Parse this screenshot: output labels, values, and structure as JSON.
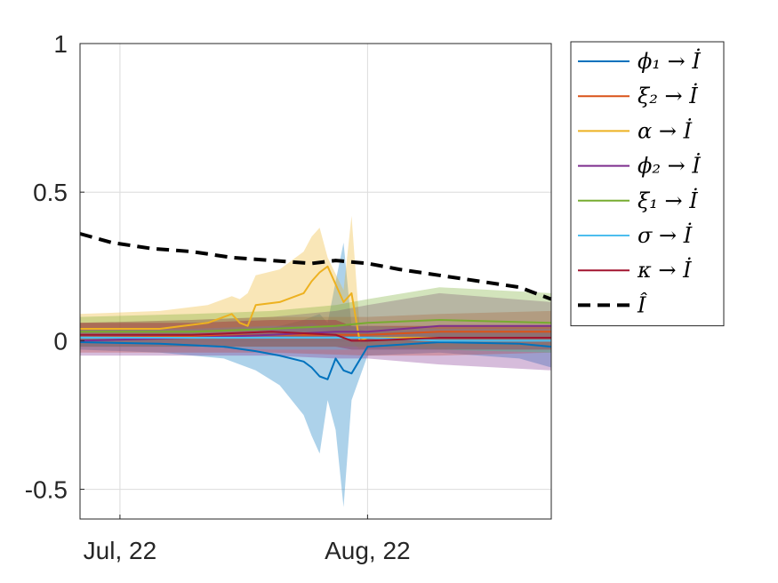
{
  "chart_data": {
    "type": "line",
    "title": "",
    "xlabel": "",
    "ylabel": "",
    "x_ticks": [
      {
        "label": "Jul, 22",
        "date": "2022-07-01"
      },
      {
        "label": "Aug, 22",
        "date": "2022-08-01"
      }
    ],
    "xlim": [
      "2022-06-26",
      "2022-08-24"
    ],
    "ylim": [
      -0.6,
      1
    ],
    "y_ticks": [
      {
        "value": 1,
        "label": "1"
      },
      {
        "value": 0.5,
        "label": "0.5"
      },
      {
        "value": 0,
        "label": "0"
      },
      {
        "value": -0.5,
        "label": "-0.5"
      }
    ],
    "grid": true,
    "legend_position": "outside top-right",
    "series": [
      {
        "name": "ϕ₁ → İ",
        "color": "#0072BD",
        "band_color": "#0072BD",
        "style": "solid",
        "x": [
          "2022-06-26",
          "2022-07-06",
          "2022-07-14",
          "2022-07-18",
          "2022-07-21",
          "2022-07-24",
          "2022-07-25",
          "2022-07-26",
          "2022-07-27",
          "2022-07-28",
          "2022-07-29",
          "2022-07-30",
          "2022-08-01",
          "2022-08-10",
          "2022-08-20",
          "2022-08-24"
        ],
        "y": [
          -0.005,
          -0.01,
          -0.02,
          -0.035,
          -0.05,
          -0.07,
          -0.09,
          -0.12,
          -0.13,
          -0.06,
          -0.1,
          -0.11,
          -0.02,
          -0.005,
          -0.01,
          -0.02
        ],
        "lower": [
          -0.03,
          -0.04,
          -0.06,
          -0.1,
          -0.15,
          -0.25,
          -0.32,
          -0.38,
          -0.2,
          -0.3,
          -0.56,
          -0.2,
          -0.05,
          -0.04,
          -0.06,
          -0.09
        ],
        "upper": [
          0.02,
          0.02,
          0.02,
          0.03,
          0.05,
          0.07,
          0.08,
          0.09,
          0.06,
          0.2,
          0.33,
          0.05,
          0.03,
          0.03,
          0.03,
          0.03
        ]
      },
      {
        "name": "ξ₂ → İ",
        "color": "#D95319",
        "band_color": "#D95319",
        "style": "solid",
        "x": [
          "2022-06-26",
          "2022-07-10",
          "2022-07-20",
          "2022-08-01",
          "2022-08-10",
          "2022-08-24"
        ],
        "y": [
          0.01,
          0.015,
          0.02,
          0.02,
          0.03,
          0.03
        ],
        "lower": [
          -0.04,
          -0.04,
          -0.04,
          -0.05,
          -0.05,
          -0.04
        ],
        "upper": [
          0.06,
          0.07,
          0.08,
          0.08,
          0.09,
          0.1
        ]
      },
      {
        "name": "α → İ",
        "color": "#EDB120",
        "band_color": "#EDB120",
        "style": "solid",
        "x": [
          "2022-06-26",
          "2022-07-06",
          "2022-07-12",
          "2022-07-15",
          "2022-07-16",
          "2022-07-17",
          "2022-07-18",
          "2022-07-21",
          "2022-07-24",
          "2022-07-25",
          "2022-07-26",
          "2022-07-27",
          "2022-07-29",
          "2022-07-30",
          "2022-07-31",
          "2022-08-01",
          "2022-08-10",
          "2022-08-24"
        ],
        "y": [
          0.04,
          0.04,
          0.06,
          0.09,
          0.06,
          0.05,
          0.12,
          0.13,
          0.16,
          0.2,
          0.23,
          0.25,
          0.13,
          0.16,
          0.0,
          0.01,
          0.01,
          0.01
        ],
        "lower": [
          0.0,
          0.0,
          0.01,
          0.02,
          0.02,
          0.02,
          0.03,
          0.04,
          0.05,
          0.06,
          0.05,
          0.03,
          0.02,
          0.0,
          -0.03,
          -0.02,
          -0.02,
          -0.02
        ],
        "upper": [
          0.09,
          0.1,
          0.12,
          0.15,
          0.14,
          0.16,
          0.22,
          0.24,
          0.3,
          0.35,
          0.38,
          0.28,
          0.17,
          0.42,
          0.05,
          0.05,
          0.05,
          0.05
        ]
      },
      {
        "name": "ϕ₂ → İ",
        "color": "#7E2F8E",
        "band_color": "#7E2F8E",
        "style": "solid",
        "x": [
          "2022-06-26",
          "2022-07-10",
          "2022-07-20",
          "2022-07-28",
          "2022-08-01",
          "2022-08-10",
          "2022-08-24"
        ],
        "y": [
          0.0,
          0.01,
          0.02,
          0.03,
          0.03,
          0.05,
          0.05
        ],
        "lower": [
          -0.05,
          -0.05,
          -0.05,
          -0.06,
          -0.06,
          -0.08,
          -0.1
        ],
        "upper": [
          0.06,
          0.07,
          0.08,
          0.1,
          0.12,
          0.16,
          0.13
        ]
      },
      {
        "name": "ξ₁ → İ",
        "color": "#77AC30",
        "band_color": "#77AC30",
        "style": "solid",
        "x": [
          "2022-06-26",
          "2022-07-10",
          "2022-07-20",
          "2022-07-28",
          "2022-08-01",
          "2022-08-10",
          "2022-08-24"
        ],
        "y": [
          0.03,
          0.03,
          0.04,
          0.05,
          0.06,
          0.07,
          0.06
        ],
        "lower": [
          -0.02,
          -0.02,
          -0.02,
          -0.02,
          -0.02,
          -0.03,
          -0.04
        ],
        "upper": [
          0.08,
          0.09,
          0.1,
          0.12,
          0.14,
          0.18,
          0.16
        ]
      },
      {
        "name": "σ → İ",
        "color": "#4DBEEE",
        "band_color": "#4DBEEE",
        "style": "solid",
        "x": [
          "2022-06-26",
          "2022-07-10",
          "2022-07-20",
          "2022-08-01",
          "2022-08-10",
          "2022-08-24"
        ],
        "y": [
          0.01,
          0.01,
          0.01,
          0.01,
          0.0,
          0.0
        ],
        "lower": [
          -0.02,
          -0.02,
          -0.03,
          -0.03,
          -0.03,
          -0.04
        ],
        "upper": [
          0.04,
          0.04,
          0.05,
          0.05,
          0.04,
          0.04
        ]
      },
      {
        "name": "κ → İ",
        "color": "#A2142F",
        "band_color": "#A2142F",
        "style": "solid",
        "x": [
          "2022-06-26",
          "2022-07-10",
          "2022-07-20",
          "2022-07-28",
          "2022-07-30",
          "2022-08-01",
          "2022-08-10",
          "2022-08-24"
        ],
        "y": [
          0.02,
          0.02,
          0.03,
          0.02,
          0.0,
          0.0,
          0.01,
          0.01
        ],
        "lower": [
          -0.02,
          -0.02,
          -0.02,
          -0.02,
          -0.03,
          -0.03,
          -0.03,
          -0.03
        ],
        "upper": [
          0.06,
          0.06,
          0.07,
          0.07,
          0.05,
          0.05,
          0.05,
          0.05
        ]
      },
      {
        "name": "Î",
        "color": "#000000",
        "style": "dashed",
        "x": [
          "2022-06-26",
          "2022-06-30",
          "2022-07-05",
          "2022-07-10",
          "2022-07-15",
          "2022-07-20",
          "2022-07-25",
          "2022-07-28",
          "2022-08-01",
          "2022-08-05",
          "2022-08-10",
          "2022-08-15",
          "2022-08-20",
          "2022-08-24"
        ],
        "y": [
          0.36,
          0.33,
          0.31,
          0.3,
          0.28,
          0.27,
          0.26,
          0.27,
          0.26,
          0.24,
          0.22,
          0.2,
          0.18,
          0.14
        ]
      }
    ]
  }
}
